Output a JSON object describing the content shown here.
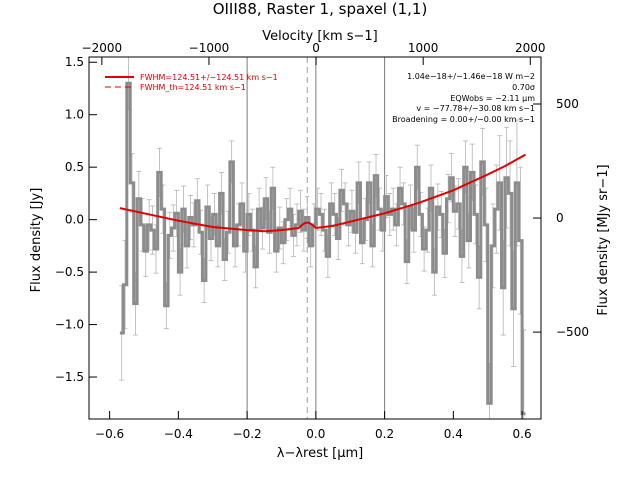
{
  "chart_data": {
    "type": "line",
    "title": "OIII88, Raster 1, spaxel (1,1)",
    "xlabel": "λ−λrest [μm]",
    "ylabel": "Flux density [Jy]",
    "top_xlabel": "Velocity [km s−1]",
    "right_ylabel": "Flux density [MJy sr−1]",
    "xlim": [
      -0.66,
      0.655
    ],
    "ylim": [
      -1.9,
      1.55
    ],
    "top_xlim": [
      -2120,
      2100
    ],
    "right_ylim": [
      -881,
      706
    ],
    "x_ticks": [
      -0.6,
      -0.4,
      -0.2,
      0.0,
      0.2,
      0.4,
      0.6
    ],
    "x_tick_labels": [
      "−0.6",
      "−0.4",
      "−0.2",
      "0.0",
      "0.2",
      "0.4",
      "0.6"
    ],
    "y_ticks": [
      -1.5,
      -1.0,
      -0.5,
      0.0,
      0.5,
      1.0,
      1.5
    ],
    "y_tick_labels": [
      "−1.5",
      "−1.0",
      "−0.5",
      "0.0",
      "0.5",
      "1.0",
      "1.5"
    ],
    "top_ticks": [
      -2000,
      -1000,
      0,
      1000,
      2000
    ],
    "top_tick_labels": [
      "−2000",
      "−1000",
      "0",
      "1000",
      "2000"
    ],
    "right_ticks": [
      -500,
      0,
      500
    ],
    "right_tick_labels": [
      "−500",
      "0",
      "500"
    ],
    "vertical_lines": [
      -0.2,
      0.0,
      0.2
    ],
    "dashed_line_x": -0.025,
    "legend": {
      "placement": "top-left",
      "entries": [
        {
          "label": "FWHM=124.51+/−124.51 km s−1",
          "style": "solid",
          "color": "#e00000"
        },
        {
          "label": "FWHM_th=124.51 km s−1",
          "style": "dashed",
          "color": "#e00000"
        }
      ]
    },
    "annotations": [
      "1.04e−18+/−1.46e−18 W m−2",
      "0.70σ",
      "EQWobs = −2.11 μm",
      "v = −77.78+/−30.08 km s−1",
      "Broadening = 0.00+/−0.00 km s−1"
    ],
    "colors": {
      "data": "#8c8c8c",
      "error": "#b4b4b4",
      "fit": "#e00000",
      "grid": "#7a7a7a"
    },
    "series": [
      {
        "style": "histogram-step",
        "x": [
          -0.565,
          -0.555,
          -0.545,
          -0.535,
          -0.525,
          -0.515,
          -0.505,
          -0.495,
          -0.485,
          -0.475,
          -0.465,
          -0.455,
          -0.445,
          -0.435,
          -0.425,
          -0.415,
          -0.405,
          -0.395,
          -0.385,
          -0.375,
          -0.365,
          -0.355,
          -0.345,
          -0.335,
          -0.325,
          -0.315,
          -0.305,
          -0.295,
          -0.285,
          -0.275,
          -0.265,
          -0.255,
          -0.245,
          -0.235,
          -0.225,
          -0.215,
          -0.205,
          -0.195,
          -0.185,
          -0.175,
          -0.165,
          -0.155,
          -0.145,
          -0.135,
          -0.125,
          -0.115,
          -0.105,
          -0.095,
          -0.085,
          -0.075,
          -0.065,
          -0.055,
          -0.045,
          -0.035,
          -0.025,
          -0.015,
          -0.005,
          0.005,
          0.015,
          0.025,
          0.035,
          0.045,
          0.055,
          0.065,
          0.075,
          0.085,
          0.095,
          0.105,
          0.115,
          0.125,
          0.135,
          0.145,
          0.155,
          0.165,
          0.175,
          0.185,
          0.195,
          0.205,
          0.215,
          0.225,
          0.235,
          0.245,
          0.255,
          0.265,
          0.275,
          0.285,
          0.295,
          0.305,
          0.315,
          0.325,
          0.335,
          0.345,
          0.355,
          0.365,
          0.375,
          0.385,
          0.395,
          0.405,
          0.415,
          0.425,
          0.435,
          0.445,
          0.455,
          0.465,
          0.475,
          0.485,
          0.495,
          0.505,
          0.515,
          0.525,
          0.535,
          0.545,
          0.555,
          0.565,
          0.575,
          0.585,
          0.595,
          0.605
        ],
        "values": [
          -1.08,
          -0.62,
          1.3,
          0.35,
          -0.8,
          0.2,
          -0.05,
          -0.3,
          -0.05,
          -0.1,
          -0.28,
          0.45,
          0.1,
          -0.82,
          -0.15,
          -0.08,
          0.06,
          -0.5,
          0.1,
          -0.25,
          0.02,
          -0.05,
          0.18,
          -0.12,
          -0.58,
          0.12,
          -0.18,
          0.05,
          -0.25,
          0.25,
          -0.38,
          -0.12,
          0.55,
          -0.25,
          -0.05,
          0.15,
          -0.3,
          0.05,
          -0.1,
          -0.45,
          0.1,
          -0.08,
          0.2,
          -0.12,
          0.3,
          -0.3,
          -0.08,
          -0.22,
          0.0,
          0.1,
          -0.15,
          -0.05,
          0.08,
          -0.1,
          0.02,
          -0.25,
          -0.05,
          0.1,
          0.05,
          -0.1,
          -0.35,
          0.15,
          0.05,
          -0.18,
          0.28,
          0.15,
          -0.05,
          0.08,
          -0.12,
          0.35,
          -0.22,
          0.0,
          0.35,
          -0.25,
          0.42,
          0.1,
          -0.1,
          0.22,
          0.05,
          0.1,
          -0.05,
          0.3,
          0.15,
          -0.4,
          0.12,
          -0.1,
          0.5,
          0.05,
          -0.28,
          -0.1,
          0.3,
          -0.5,
          0.12,
          0.05,
          -0.32,
          0.2,
          0.4,
          0.08,
          0.15,
          -0.35,
          0.5,
          -0.2,
          0.45,
          0.05,
          -0.55,
          0.55,
          -0.05,
          -1.75,
          -0.25,
          0.1,
          0.35,
          -0.65,
          0.4,
          0.25,
          -0.85,
          0.35,
          -0.2,
          -1.85
        ],
        "errors": [
          0.45,
          0.42,
          0.25,
          0.28,
          0.3,
          0.26,
          0.25,
          0.24,
          0.24,
          0.23,
          0.23,
          0.23,
          0.23,
          0.22,
          0.22,
          0.22,
          0.22,
          0.22,
          0.22,
          0.21,
          0.21,
          0.21,
          0.21,
          0.21,
          0.21,
          0.21,
          0.21,
          0.2,
          0.2,
          0.2,
          0.2,
          0.2,
          0.2,
          0.2,
          0.2,
          0.2,
          0.2,
          0.2,
          0.2,
          0.2,
          0.2,
          0.2,
          0.2,
          0.2,
          0.2,
          0.2,
          0.2,
          0.2,
          0.2,
          0.2,
          0.2,
          0.2,
          0.2,
          0.2,
          0.2,
          0.2,
          0.2,
          0.2,
          0.2,
          0.2,
          0.2,
          0.2,
          0.2,
          0.2,
          0.2,
          0.2,
          0.2,
          0.2,
          0.2,
          0.2,
          0.2,
          0.2,
          0.2,
          0.2,
          0.2,
          0.2,
          0.2,
          0.2,
          0.2,
          0.2,
          0.2,
          0.2,
          0.2,
          0.21,
          0.21,
          0.21,
          0.21,
          0.21,
          0.21,
          0.21,
          0.22,
          0.22,
          0.22,
          0.22,
          0.23,
          0.23,
          0.23,
          0.24,
          0.24,
          0.25,
          0.25,
          0.26,
          0.27,
          0.28,
          0.3,
          0.32,
          0.35,
          0.38,
          0.4,
          0.42,
          0.45,
          0.45,
          0.48,
          0.5,
          0.55,
          0.6,
          0.7,
          0.8
        ]
      },
      {
        "style": "fit-curve",
        "color": "#e00000",
        "x": [
          -0.57,
          -0.5,
          -0.4,
          -0.3,
          -0.2,
          -0.15,
          -0.1,
          -0.05,
          -0.04,
          -0.03,
          -0.02,
          -0.01,
          0.0,
          0.05,
          0.1,
          0.2,
          0.3,
          0.4,
          0.5,
          0.55,
          0.61
        ],
        "values": [
          0.11,
          0.06,
          -0.01,
          -0.07,
          -0.1,
          -0.11,
          -0.1,
          -0.08,
          -0.05,
          -0.03,
          -0.03,
          -0.05,
          -0.08,
          -0.06,
          -0.02,
          0.06,
          0.16,
          0.28,
          0.43,
          0.51,
          0.62
        ]
      }
    ]
  }
}
